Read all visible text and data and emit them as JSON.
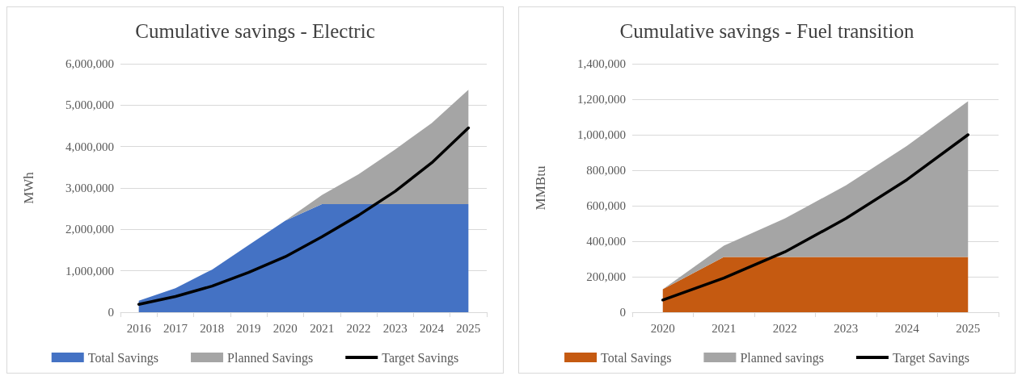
{
  "chart_data": [
    {
      "type": "area",
      "title": "Cumulative savings - Electric",
      "ylabel": "MWh",
      "categories": [
        "2016",
        "2017",
        "2018",
        "2019",
        "2020",
        "2021",
        "2022",
        "2023",
        "2024",
        "2025"
      ],
      "stacked": true,
      "series": [
        {
          "name": "Total Savings",
          "color": "#4472c4",
          "values": [
            280000,
            580000,
            1030000,
            1620000,
            2210000,
            2610000,
            2610000,
            2610000,
            2610000,
            2610000
          ]
        },
        {
          "name": "Planned Savings",
          "color": "#a5a5a5",
          "values": [
            0,
            0,
            0,
            0,
            0,
            220000,
            720000,
            1320000,
            1960000,
            2760000
          ]
        },
        {
          "name": "Target Savings",
          "type": "line",
          "color": "#000000",
          "values": [
            190000,
            380000,
            630000,
            960000,
            1340000,
            1820000,
            2340000,
            2920000,
            3610000,
            4450000
          ]
        }
      ],
      "ylim": [
        0,
        6000000
      ],
      "yticks": [
        0,
        {
          "value": 1000000,
          "label": "1,000,000"
        },
        {
          "value": 2000000,
          "label": "2,000,000"
        },
        {
          "value": 3000000,
          "label": "3,000,000"
        },
        {
          "value": 4000000,
          "label": "4,000,000"
        },
        {
          "value": 5000000,
          "label": "5,000,000"
        },
        {
          "value": 6000000,
          "label": "6,000,000"
        }
      ],
      "grid": "y",
      "legend": "bottom",
      "marker": "none",
      "line_style": "solid"
    },
    {
      "type": "area",
      "title": "Cumulative savings - Fuel transition",
      "ylabel": "MMBtu",
      "categories": [
        "2020",
        "2021",
        "2022",
        "2023",
        "2024",
        "2025"
      ],
      "stacked": true,
      "series": [
        {
          "name": "Total Savings",
          "color": "#c55a11",
          "values": [
            129000,
            311000,
            311000,
            311000,
            311000,
            311000
          ]
        },
        {
          "name": "Planned savings",
          "color": "#a5a5a5",
          "values": [
            0,
            64000,
            217000,
            404000,
            627000,
            878000
          ]
        },
        {
          "name": "Target Savings",
          "type": "line",
          "color": "#000000",
          "values": [
            69000,
            193000,
            340000,
            528000,
            747000,
            1000000
          ]
        }
      ],
      "ylim": [
        0,
        1400000
      ],
      "yticks": [
        0,
        {
          "value": 200000,
          "label": "200,000"
        },
        {
          "value": 400000,
          "label": "400,000"
        },
        {
          "value": 600000,
          "label": "600,000"
        },
        {
          "value": 800000,
          "label": "800,000"
        },
        {
          "value": 1000000,
          "label": "1,000,000"
        },
        {
          "value": 1200000,
          "label": "1,200,000"
        },
        {
          "value": 1400000,
          "label": "1,400,000"
        }
      ],
      "grid": "y",
      "legend": "bottom",
      "marker": "none",
      "line_style": "solid"
    }
  ]
}
